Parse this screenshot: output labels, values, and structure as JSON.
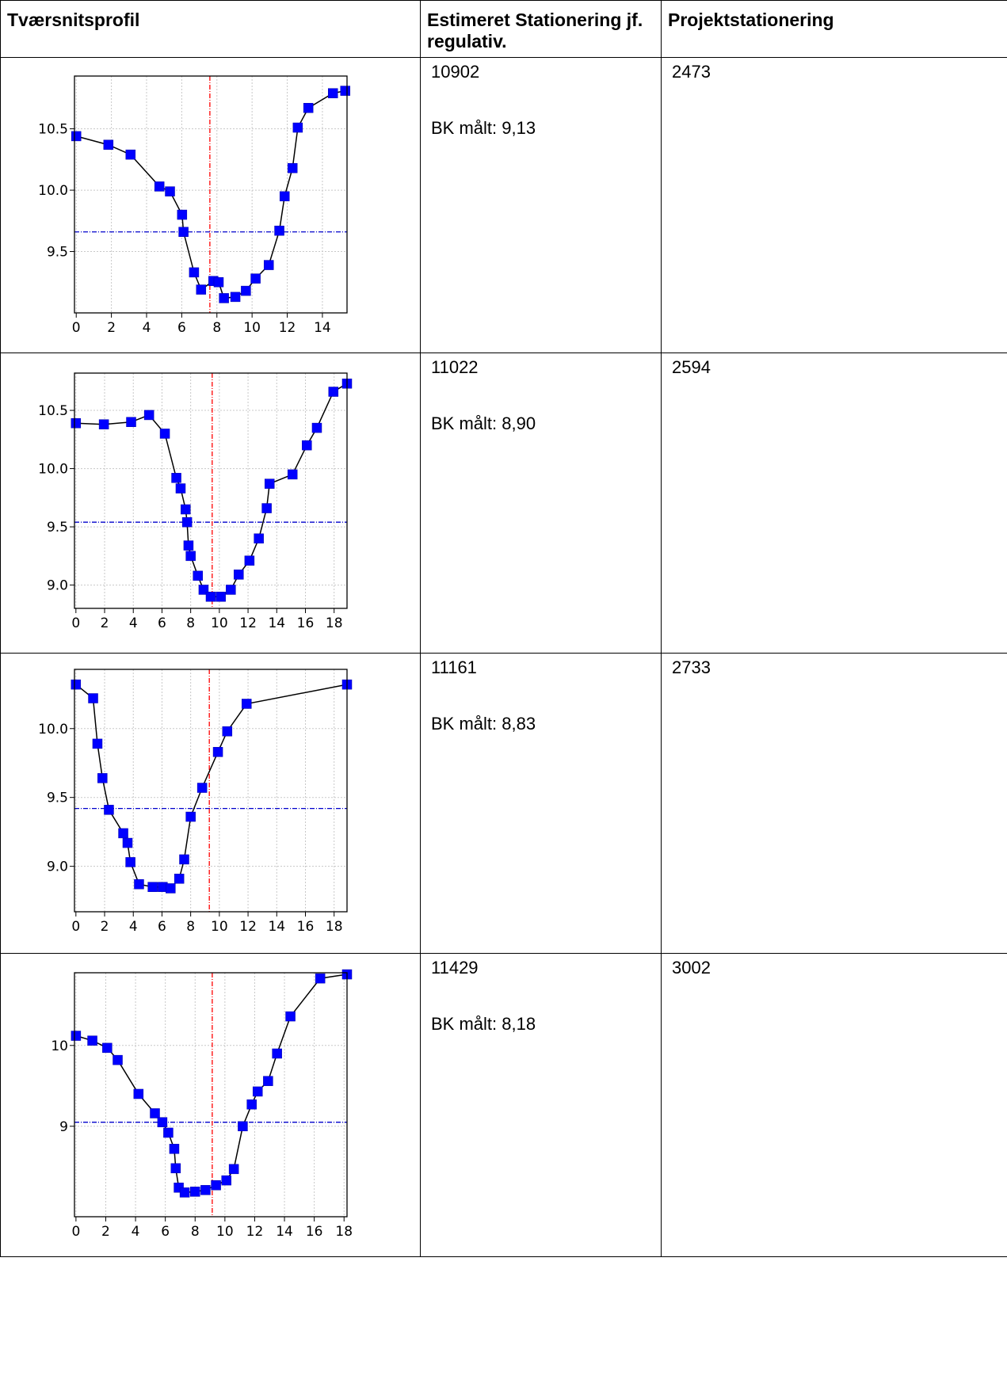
{
  "table": {
    "headers": [
      "Tværsnitsprofil",
      "Estimeret Stationering jf. regulativ.",
      "Projektstationering"
    ]
  },
  "rows": [
    {
      "estimated_station": "10902",
      "bk_text": "BK målt: 9,13",
      "project_station": "2473"
    },
    {
      "estimated_station": "11022",
      "bk_text": "BK målt: 8,90",
      "project_station": "2594"
    },
    {
      "estimated_station": "11161",
      "bk_text": "BK målt: 8,83",
      "project_station": "2733"
    },
    {
      "estimated_station": "11429",
      "bk_text": "BK målt: 8,18",
      "project_station": "3002"
    }
  ],
  "colors": {
    "profile": "#0000ff",
    "water_level": "#0000cc",
    "centerline": "#ff0000",
    "grid": "#c8c8c8"
  },
  "chart_data": [
    {
      "type": "line",
      "xlim": [
        -0.1,
        15.4
      ],
      "ylim": [
        9.0,
        10.93
      ],
      "xticks": [
        0,
        2,
        4,
        6,
        8,
        10,
        12,
        14
      ],
      "yticks": [
        9.5,
        10.0,
        10.5
      ],
      "ytick_labels": [
        "9.5",
        "10.0",
        "10.5"
      ],
      "grid": true,
      "x": [
        0,
        1.83,
        3.09,
        4.73,
        5.33,
        6.02,
        6.1,
        6.7,
        7.1,
        7.8,
        8.1,
        8.4,
        9.05,
        9.65,
        10.2,
        10.95,
        11.55,
        11.85,
        12.3,
        12.6,
        13.2,
        14.6,
        15.3
      ],
      "y": [
        10.44,
        10.37,
        10.29,
        10.03,
        9.99,
        9.8,
        9.66,
        9.33,
        9.19,
        9.26,
        9.25,
        9.12,
        9.13,
        9.18,
        9.28,
        9.39,
        9.67,
        9.95,
        10.18,
        10.51,
        10.67,
        10.79,
        10.81
      ],
      "water_level": 9.66,
      "centerline_x": 7.6
    },
    {
      "type": "line",
      "xlim": [
        -0.1,
        18.9
      ],
      "ylim": [
        8.8,
        10.82
      ],
      "xticks": [
        0,
        2,
        4,
        6,
        8,
        10,
        12,
        14,
        16,
        18
      ],
      "yticks": [
        9.0,
        9.5,
        10.0,
        10.5
      ],
      "ytick_labels": [
        "9.0",
        "9.5",
        "10.0",
        "10.5"
      ],
      "grid": true,
      "x": [
        0,
        1.95,
        3.85,
        5.1,
        6.2,
        7.0,
        7.3,
        7.65,
        7.75,
        7.85,
        8.0,
        8.5,
        8.9,
        9.4,
        10.1,
        10.8,
        11.35,
        12.1,
        12.75,
        13.3,
        13.5,
        15.1,
        16.1,
        16.8,
        17.95,
        18.9
      ],
      "y": [
        10.39,
        10.38,
        10.4,
        10.46,
        10.3,
        9.92,
        9.83,
        9.65,
        9.54,
        9.34,
        9.25,
        9.08,
        8.96,
        8.9,
        8.9,
        8.96,
        9.09,
        9.21,
        9.4,
        9.66,
        9.87,
        9.95,
        10.2,
        10.35,
        10.66,
        10.73
      ],
      "water_level": 9.54,
      "centerline_x": 9.5
    },
    {
      "type": "line",
      "xlim": [
        -0.1,
        18.9
      ],
      "ylim": [
        8.67,
        10.43
      ],
      "xticks": [
        0,
        2,
        4,
        6,
        8,
        10,
        12,
        14,
        16,
        18
      ],
      "yticks": [
        9.0,
        9.5,
        10.0
      ],
      "ytick_labels": [
        "9.0",
        "9.5",
        "10.0"
      ],
      "grid": true,
      "x": [
        0,
        1.2,
        1.5,
        1.85,
        2.3,
        3.3,
        3.6,
        3.8,
        4.4,
        5.35,
        6.05,
        6.6,
        7.2,
        7.55,
        8.0,
        8.8,
        9.9,
        10.55,
        11.9,
        18.9
      ],
      "y": [
        10.32,
        10.22,
        9.89,
        9.64,
        9.41,
        9.24,
        9.17,
        9.03,
        8.87,
        8.85,
        8.85,
        8.84,
        8.91,
        9.05,
        9.36,
        9.57,
        9.83,
        9.98,
        10.18,
        10.32
      ],
      "water_level": 9.42,
      "centerline_x": 9.3
    },
    {
      "type": "line",
      "xlim": [
        -0.1,
        18.2
      ],
      "ylim": [
        7.88,
        10.9
      ],
      "xticks": [
        0,
        2,
        4,
        6,
        8,
        10,
        12,
        14,
        16,
        18
      ],
      "yticks": [
        9,
        10
      ],
      "ytick_labels": [
        "9",
        "10"
      ],
      "grid": true,
      "x": [
        0,
        1.1,
        2.1,
        2.8,
        4.2,
        5.3,
        5.8,
        6.2,
        6.6,
        6.7,
        6.9,
        7.3,
        8.0,
        8.7,
        9.4,
        10.1,
        10.6,
        11.2,
        11.8,
        12.2,
        12.9,
        13.5,
        14.4,
        16.4,
        18.2
      ],
      "y": [
        10.12,
        10.06,
        9.97,
        9.82,
        9.4,
        9.16,
        9.05,
        8.92,
        8.72,
        8.48,
        8.24,
        8.18,
        8.19,
        8.21,
        8.27,
        8.33,
        8.47,
        9.0,
        9.27,
        9.43,
        9.56,
        9.9,
        10.36,
        10.83,
        10.88
      ],
      "water_level": 9.05,
      "centerline_x": 9.15
    }
  ]
}
